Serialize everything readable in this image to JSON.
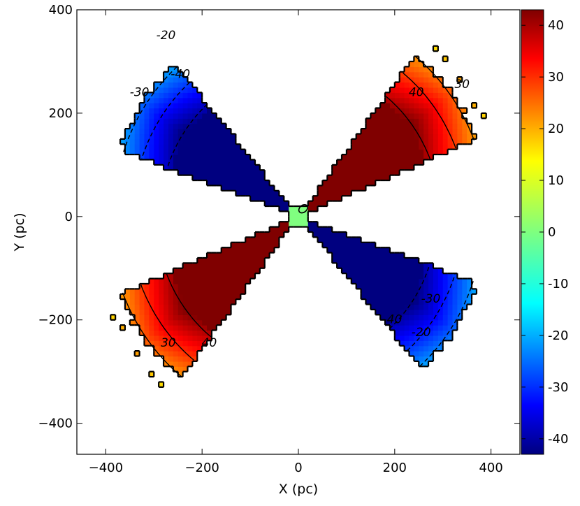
{
  "chart_data": {
    "type": "heatmap",
    "title": "",
    "xlabel": "X (pc)",
    "ylabel": "Y (pc)",
    "xlim": [
      -460,
      460
    ],
    "ylim": [
      -460,
      400
    ],
    "x_ticks": [
      -400,
      -200,
      0,
      200,
      400
    ],
    "y_ticks": [
      -400,
      -200,
      0,
      200,
      400
    ],
    "x_tick_labels": [
      "−400",
      "−200",
      "0",
      "200",
      "400"
    ],
    "y_tick_labels": [
      "−400",
      "−200",
      "0",
      "200",
      "400"
    ],
    "grid": false,
    "colormap": "jet",
    "colorbar": {
      "vmin": -43,
      "vmax": 43,
      "ticks": [
        40,
        30,
        20,
        10,
        0,
        -10,
        -20,
        -30,
        -40
      ],
      "tick_labels": [
        "40",
        "30",
        "20",
        "10",
        "0",
        "-10",
        "-20",
        "-30",
        "-40"
      ]
    },
    "cones": [
      {
        "name": "upper-right",
        "direction_deg": 37,
        "half_angle_deg": 15,
        "length": 410,
        "sign": 1
      },
      {
        "name": "lower-left",
        "direction_deg": 217,
        "half_angle_deg": 15,
        "length": 410,
        "sign": 1
      },
      {
        "name": "upper-left",
        "direction_deg": 146,
        "half_angle_deg": 15,
        "length": 400,
        "sign": -1
      },
      {
        "name": "lower-right",
        "direction_deg": 326,
        "half_angle_deg": 15,
        "length": 400,
        "sign": -1
      }
    ],
    "contour_labels": [
      {
        "text": "40",
        "x": 245,
        "y": 240
      },
      {
        "text": "30",
        "x": 340,
        "y": 255
      },
      {
        "text": "-20",
        "x": -275,
        "y": 350
      },
      {
        "text": "-40",
        "x": -245,
        "y": 275
      },
      {
        "text": "-30",
        "x": -330,
        "y": 240
      },
      {
        "text": "30",
        "x": -270,
        "y": -245
      },
      {
        "text": "40",
        "x": -185,
        "y": -245
      },
      {
        "text": "-40",
        "x": 195,
        "y": -200
      },
      {
        "text": "-30",
        "x": 275,
        "y": -160
      },
      {
        "text": "-20",
        "x": 255,
        "y": -225
      }
    ],
    "center_value": 0
  }
}
